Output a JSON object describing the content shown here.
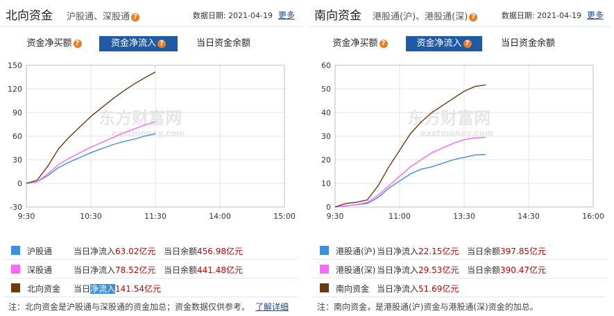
{
  "left": {
    "title": "北向资金",
    "subtitle": "沪股通、深股通",
    "date_label": "数据日期:",
    "date": "2021-04-19",
    "more": "更多",
    "tabs": [
      {
        "label": "资金净买额",
        "help": "?"
      },
      {
        "label": "资金净流入",
        "help": "?"
      },
      {
        "label": "当日资金余额"
      }
    ],
    "legend": [
      {
        "name": "沪股通",
        "k1": "当日净流入",
        "v1": "63.02亿元",
        "k2": "当日余额",
        "v2": "456.98亿元",
        "color": "#3a8ee6"
      },
      {
        "name": "深股通",
        "k1": "当日净流入",
        "v1": "78.52亿元",
        "k2": "当日余额",
        "v2": "441.48亿元",
        "color": "#ff66ff"
      },
      {
        "name": "北向资金",
        "k1a": "当日",
        "k1b": "净流入",
        "v1": "141.54亿元",
        "color": "#6b3a10"
      }
    ],
    "note": "注：北向资金是沪股通与深股通的资金加总；资金数据仅供参考。",
    "note_link": "了解详细",
    "watermark": "东方财富网",
    "watermark_sub": "eastmoney.com"
  },
  "right": {
    "title": "南向资金",
    "subtitle": "港股通(沪)、港股通(深)",
    "date_label": "数据日期:",
    "date": "2021-04-19",
    "more": "更多",
    "tabs": [
      {
        "label": "资金净买额",
        "help": "?"
      },
      {
        "label": "资金净流入",
        "help": "?"
      },
      {
        "label": "当日资金余额"
      }
    ],
    "legend": [
      {
        "name": "港股通(沪)",
        "k1": "当日净流入",
        "v1": "22.15亿元",
        "k2": "当日余额",
        "v2": "397.85亿元",
        "color": "#3a8ee6"
      },
      {
        "name": "港股通(深)",
        "k1": "当日净流入",
        "v1": "29.53亿元",
        "k2": "当日余额",
        "v2": "390.47亿元",
        "color": "#ff66ff"
      },
      {
        "name": "南向资金",
        "k1": "当日净流入",
        "v1": "51.69亿元",
        "color": "#6b3a10"
      }
    ],
    "note": "注：南向资金，是港股通(沪)资金与港股通(深)资金的加总。",
    "watermark": "东方财富网",
    "watermark_sub": "eastmoney.com"
  },
  "chart_data": [
    {
      "type": "line",
      "x_ticks": [
        "9:30",
        "10:30",
        "11:30",
        "14:00",
        "15:00"
      ],
      "ylim": [
        -30,
        150
      ],
      "y_ticks": [
        -30,
        0,
        30,
        60,
        90,
        120,
        150
      ],
      "grid": true,
      "x_minutes": [
        0,
        10,
        20,
        30,
        40,
        50,
        60,
        70,
        80,
        90,
        100,
        110,
        120
      ],
      "series": [
        {
          "name": "沪股通",
          "color": "#3a8ee6",
          "values": [
            0,
            2,
            10,
            20,
            27,
            33,
            39,
            44,
            49,
            53,
            56,
            60,
            63
          ]
        },
        {
          "name": "深股通",
          "color": "#ff66ff",
          "values": [
            0,
            2,
            12,
            24,
            32,
            39,
            46,
            52,
            58,
            64,
            69,
            74,
            78.5
          ]
        },
        {
          "name": "北向资金",
          "color": "#6b3a10",
          "values": [
            0,
            4,
            22,
            44,
            59,
            72,
            85,
            96,
            107,
            117,
            126,
            134,
            141.5
          ]
        }
      ]
    },
    {
      "type": "line",
      "x_ticks": [
        "9:30",
        "11:00",
        "13:30",
        "14:30",
        "16:00"
      ],
      "ylim": [
        0,
        60
      ],
      "y_ticks": [
        0,
        10,
        20,
        30,
        40,
        50,
        60
      ],
      "grid": true,
      "x_minutes": [
        0,
        10,
        20,
        30,
        40,
        50,
        60,
        70,
        80,
        90,
        100,
        110,
        120,
        130,
        140
      ],
      "series": [
        {
          "name": "港股通(沪)",
          "color": "#3a8ee6",
          "values": [
            0,
            0.5,
            1,
            1.5,
            4,
            8,
            11,
            14,
            16,
            17,
            18.5,
            20,
            21,
            22,
            22.2
          ]
        },
        {
          "name": "港股通(深)",
          "color": "#ff66ff",
          "values": [
            0,
            0.5,
            1,
            2,
            5,
            9,
            13,
            17,
            20,
            23,
            25,
            27,
            28.5,
            29.3,
            29.5
          ]
        },
        {
          "name": "南向资金",
          "color": "#6b3a10",
          "values": [
            0,
            1.5,
            2,
            3,
            9,
            17,
            24,
            31,
            36,
            40,
            43,
            46,
            49,
            51,
            51.7
          ]
        }
      ]
    }
  ]
}
